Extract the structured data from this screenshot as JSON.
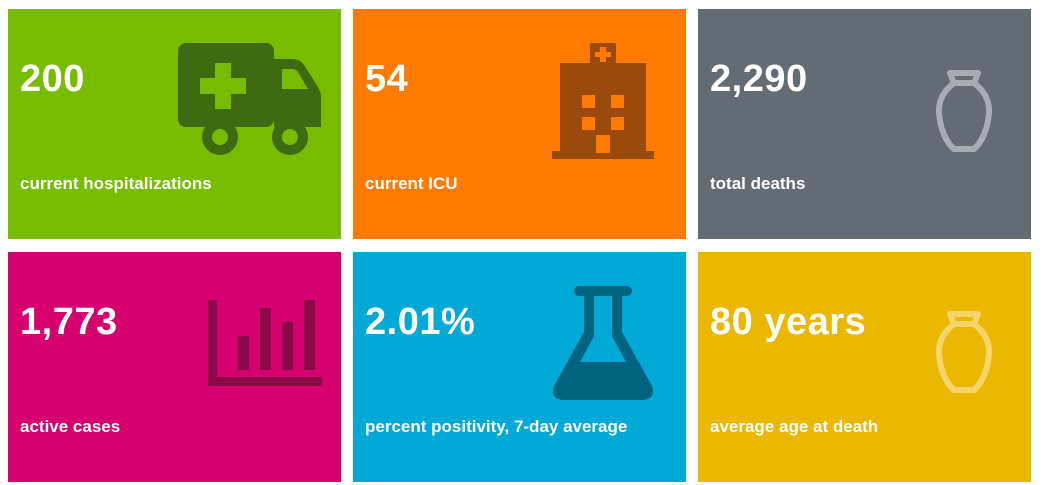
{
  "tiles": [
    {
      "value": "200",
      "label": "current hospitalizations",
      "color": "#78bc00",
      "icon": "ambulance-icon"
    },
    {
      "value": "54",
      "label": "current ICU",
      "color": "#ff7a00",
      "icon": "hospital-icon"
    },
    {
      "value": "2,290",
      "label": "total deaths",
      "color": "#636b74",
      "icon": "urn-icon"
    },
    {
      "value": "1,773",
      "label": "active cases",
      "color": "#d6006f",
      "icon": "bar-chart-icon"
    },
    {
      "value": "2.01%",
      "label": "percent positivity, 7-day average",
      "color": "#00a9d6",
      "icon": "flask-icon"
    },
    {
      "value": "80 years",
      "label": "average age at death",
      "color": "#eab800",
      "icon": "urn-icon"
    }
  ]
}
